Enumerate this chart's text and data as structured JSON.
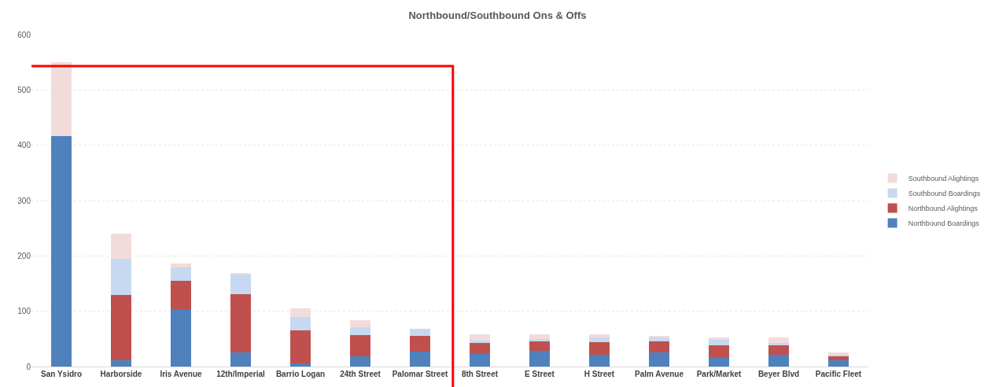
{
  "chart_data": {
    "type": "bar",
    "title": "Northbound/Southbound Ons & Offs",
    "stacked": true,
    "categories": [
      "San Ysidro",
      "Harborside",
      "Iris Avenue",
      "12th/Imperial",
      "Barrio Logan",
      "24th Street",
      "Palomar Street",
      "8th Street",
      "E Street",
      "H Street",
      "Palm Avenue",
      "Park/Market",
      "Beyer Blvd",
      "Pacific Fleet"
    ],
    "series": [
      {
        "name": "Northbound Boardings",
        "color": "#4f81bd",
        "values": [
          416,
          11,
          103,
          25,
          5,
          19,
          27,
          23,
          28,
          22,
          25,
          17,
          22,
          12
        ]
      },
      {
        "name": "Northbound Alightings",
        "color": "#c0504d",
        "values": [
          0,
          119,
          52,
          106,
          60,
          38,
          29,
          19,
          17,
          22,
          20,
          22,
          16,
          7
        ]
      },
      {
        "name": "Southbound Boardings",
        "color": "#c6d9f1",
        "values": [
          0,
          65,
          24,
          36,
          24,
          14,
          12,
          5,
          5,
          8,
          7,
          10,
          4,
          3
        ]
      },
      {
        "name": "Southbound Alightings",
        "color": "#f2dcdb",
        "values": [
          134,
          46,
          7,
          1,
          16,
          13,
          0,
          12,
          8,
          7,
          4,
          4,
          11,
          4
        ]
      }
    ],
    "ylim": [
      0,
      600
    ],
    "yticks": [
      0,
      100,
      200,
      300,
      400,
      500,
      600
    ],
    "grid": "y",
    "legend": "right"
  }
}
